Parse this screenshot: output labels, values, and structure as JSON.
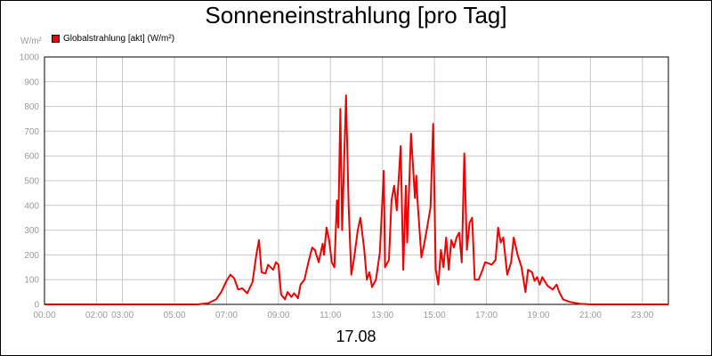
{
  "chart_data": {
    "type": "line",
    "title": "Sonneneinstrahlung [pro Tag]",
    "unit_label": "W/m²",
    "xlabel": "17.08",
    "ylim": [
      0,
      1000
    ],
    "xlim": [
      0,
      24
    ],
    "y_ticks": [
      0,
      100,
      200,
      300,
      400,
      500,
      600,
      700,
      800,
      900,
      1000
    ],
    "x_ticks": [
      {
        "value": 0,
        "label": "00:00"
      },
      {
        "value": 2,
        "label": "02:00"
      },
      {
        "value": 3,
        "label": "03:00"
      },
      {
        "value": 5,
        "label": "05:00"
      },
      {
        "value": 7,
        "label": "07:00"
      },
      {
        "value": 9,
        "label": "09:00"
      },
      {
        "value": 11,
        "label": "11:00"
      },
      {
        "value": 13,
        "label": "13:00"
      },
      {
        "value": 15,
        "label": "15:00"
      },
      {
        "value": 17,
        "label": "17:00"
      },
      {
        "value": 19,
        "label": "19:00"
      },
      {
        "value": 21,
        "label": "21:00"
      },
      {
        "value": 23,
        "label": "23:00"
      }
    ],
    "grid": true,
    "legend_position": "top-left",
    "series": [
      {
        "name": "Globalstrahlung [akt] (W/m²)",
        "color": "#ee0000",
        "points": [
          [
            0,
            0
          ],
          [
            5.9,
            0
          ],
          [
            6.3,
            5
          ],
          [
            6.6,
            20
          ],
          [
            6.8,
            50
          ],
          [
            7.0,
            95
          ],
          [
            7.15,
            120
          ],
          [
            7.3,
            105
          ],
          [
            7.45,
            60
          ],
          [
            7.6,
            65
          ],
          [
            7.8,
            45
          ],
          [
            8.0,
            90
          ],
          [
            8.15,
            200
          ],
          [
            8.25,
            260
          ],
          [
            8.35,
            130
          ],
          [
            8.5,
            125
          ],
          [
            8.6,
            160
          ],
          [
            8.7,
            150
          ],
          [
            8.8,
            140
          ],
          [
            8.9,
            170
          ],
          [
            9.0,
            160
          ],
          [
            9.1,
            40
          ],
          [
            9.25,
            20
          ],
          [
            9.35,
            50
          ],
          [
            9.5,
            30
          ],
          [
            9.6,
            45
          ],
          [
            9.75,
            25
          ],
          [
            9.85,
            80
          ],
          [
            10.0,
            100
          ],
          [
            10.15,
            170
          ],
          [
            10.3,
            230
          ],
          [
            10.4,
            220
          ],
          [
            10.55,
            170
          ],
          [
            10.7,
            245
          ],
          [
            10.75,
            200
          ],
          [
            10.85,
            310
          ],
          [
            10.95,
            260
          ],
          [
            11.05,
            170
          ],
          [
            11.15,
            150
          ],
          [
            11.25,
            420
          ],
          [
            11.3,
            310
          ],
          [
            11.38,
            790
          ],
          [
            11.45,
            300
          ],
          [
            11.6,
            845
          ],
          [
            11.7,
            400
          ],
          [
            11.8,
            120
          ],
          [
            11.9,
            180
          ],
          [
            12.05,
            300
          ],
          [
            12.15,
            350
          ],
          [
            12.3,
            220
          ],
          [
            12.4,
            100
          ],
          [
            12.5,
            130
          ],
          [
            12.6,
            70
          ],
          [
            12.75,
            100
          ],
          [
            12.9,
            210
          ],
          [
            13.05,
            540
          ],
          [
            13.1,
            150
          ],
          [
            13.25,
            180
          ],
          [
            13.35,
            420
          ],
          [
            13.45,
            480
          ],
          [
            13.55,
            380
          ],
          [
            13.7,
            640
          ],
          [
            13.8,
            140
          ],
          [
            13.9,
            480
          ],
          [
            13.95,
            250
          ],
          [
            14.1,
            690
          ],
          [
            14.25,
            430
          ],
          [
            14.3,
            520
          ],
          [
            14.35,
            420
          ],
          [
            14.5,
            190
          ],
          [
            14.6,
            240
          ],
          [
            14.7,
            300
          ],
          [
            14.85,
            390
          ],
          [
            14.95,
            730
          ],
          [
            15.05,
            140
          ],
          [
            15.15,
            80
          ],
          [
            15.25,
            220
          ],
          [
            15.35,
            150
          ],
          [
            15.45,
            270
          ],
          [
            15.55,
            140
          ],
          [
            15.65,
            260
          ],
          [
            15.75,
            230
          ],
          [
            15.85,
            270
          ],
          [
            15.95,
            290
          ],
          [
            16.05,
            170
          ],
          [
            16.15,
            610
          ],
          [
            16.25,
            220
          ],
          [
            16.35,
            330
          ],
          [
            16.45,
            350
          ],
          [
            16.55,
            100
          ],
          [
            16.7,
            100
          ],
          [
            16.85,
            140
          ],
          [
            16.95,
            170
          ],
          [
            17.1,
            165
          ],
          [
            17.2,
            160
          ],
          [
            17.35,
            180
          ],
          [
            17.45,
            310
          ],
          [
            17.55,
            250
          ],
          [
            17.65,
            270
          ],
          [
            17.8,
            120
          ],
          [
            17.95,
            170
          ],
          [
            18.05,
            270
          ],
          [
            18.2,
            200
          ],
          [
            18.35,
            150
          ],
          [
            18.5,
            50
          ],
          [
            18.6,
            140
          ],
          [
            18.75,
            130
          ],
          [
            18.85,
            95
          ],
          [
            18.95,
            110
          ],
          [
            19.05,
            80
          ],
          [
            19.15,
            110
          ],
          [
            19.35,
            75
          ],
          [
            19.55,
            60
          ],
          [
            19.7,
            80
          ],
          [
            19.8,
            50
          ],
          [
            19.95,
            20
          ],
          [
            20.2,
            10
          ],
          [
            20.6,
            2
          ],
          [
            21.0,
            0
          ],
          [
            24,
            0
          ]
        ]
      }
    ]
  }
}
